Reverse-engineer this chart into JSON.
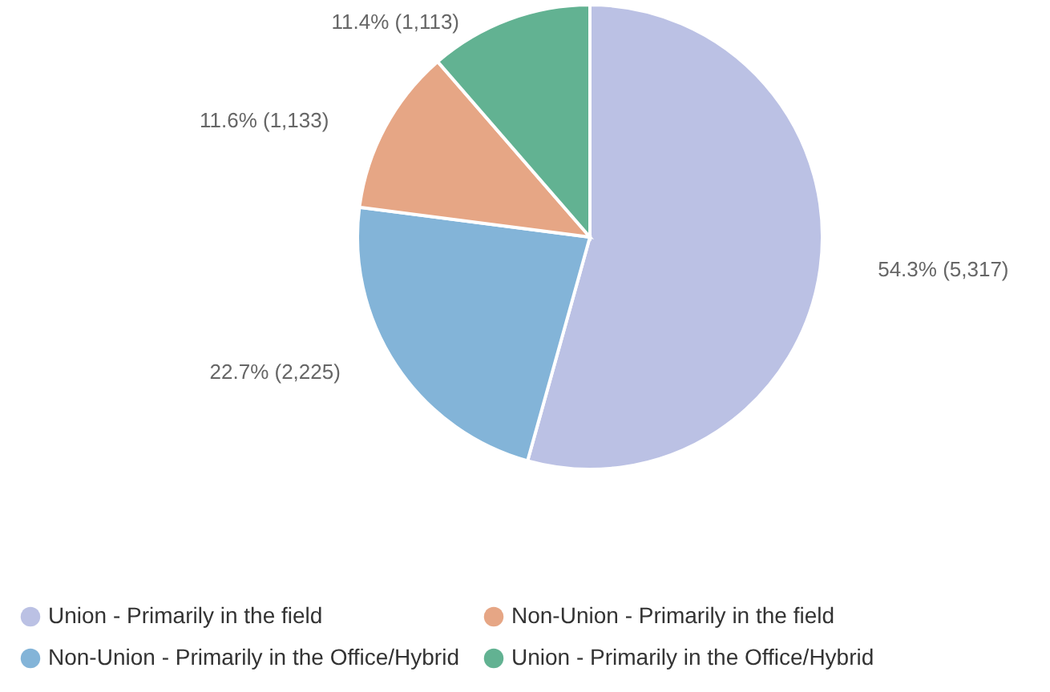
{
  "chart_data": {
    "type": "pie",
    "categories": [
      "Union - Primarily in the field",
      "Non-Union - Primarily in the Office/Hybrid",
      "Non-Union - Primarily in the field",
      "Union - Primarily in the Office/Hybrid"
    ],
    "values": [
      5317,
      2225,
      1133,
      1113
    ],
    "colors": [
      "#bbc1e4",
      "#83b4d8",
      "#e6a685",
      "#62b292"
    ],
    "value_labels": [
      "54.3% (5,317)",
      "22.7% (2,225)",
      "11.6% (1,133)",
      "11.4% (1,113)"
    ],
    "legend": "bottom"
  }
}
